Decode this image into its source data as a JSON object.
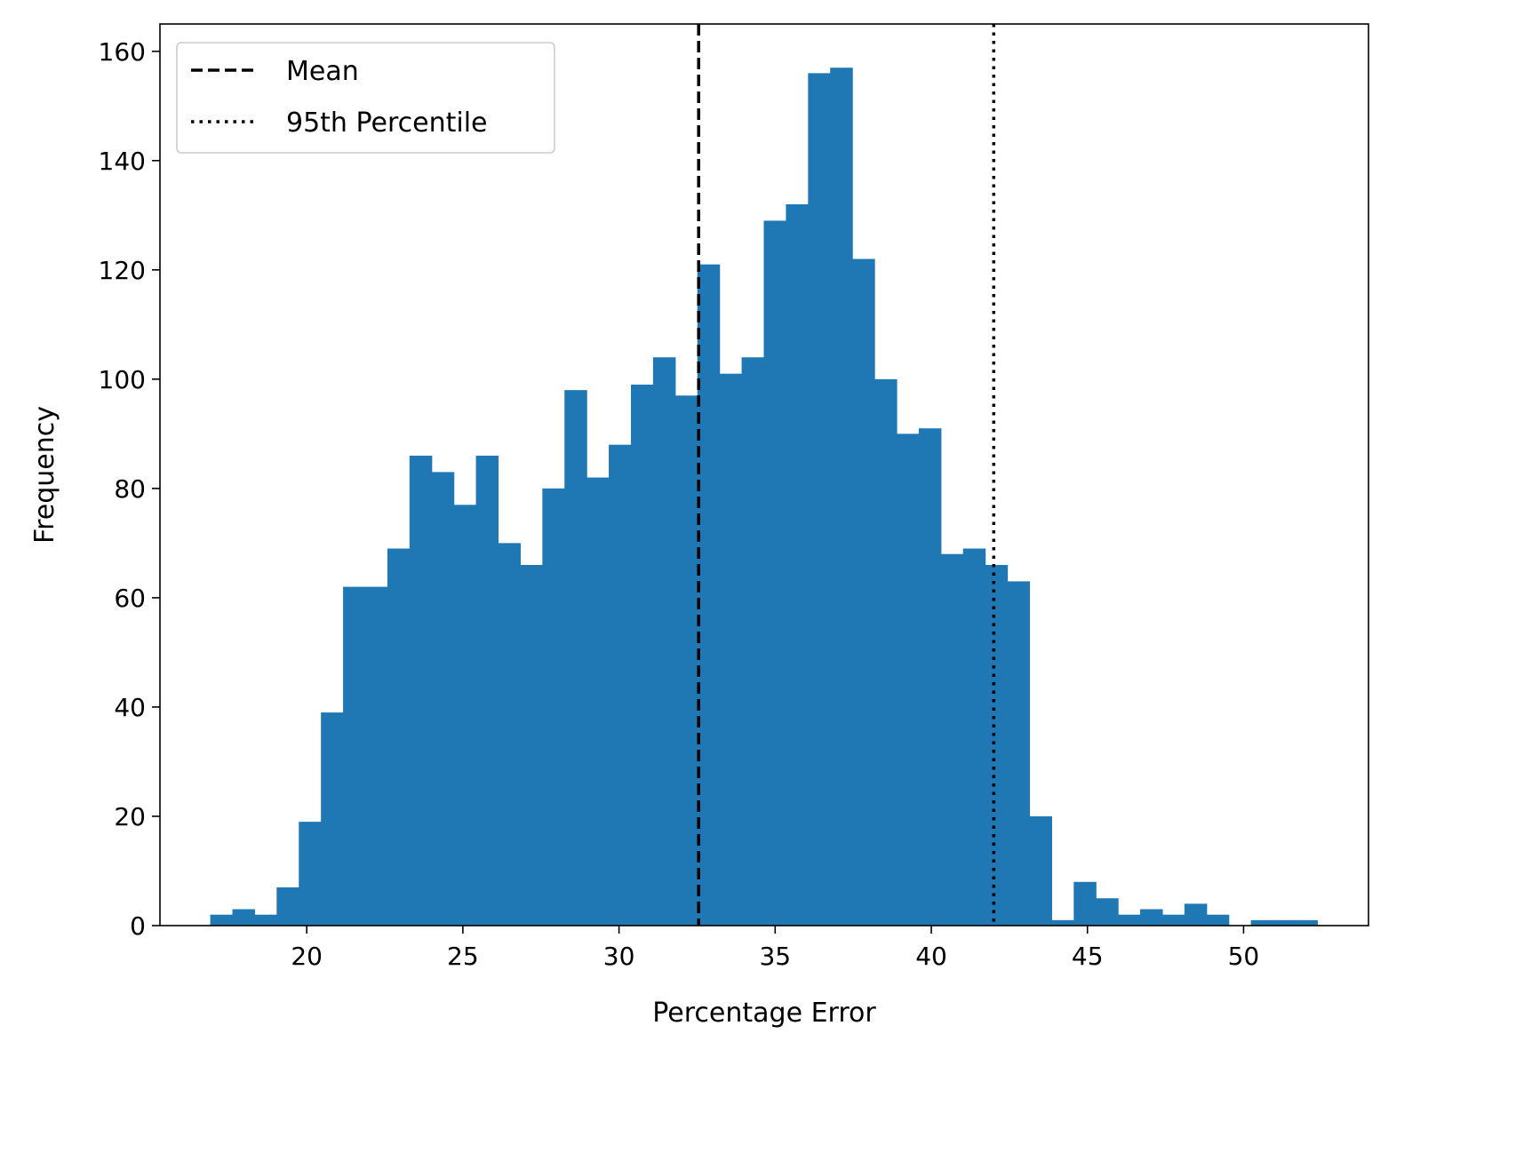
{
  "chart_data": {
    "type": "bar",
    "subtype": "histogram",
    "xlabel": "Percentage Error",
    "ylabel": "Frequency",
    "xlim": [
      15.3,
      54.0
    ],
    "ylim": [
      0,
      165
    ],
    "xticks": [
      20,
      25,
      30,
      35,
      40,
      45,
      50
    ],
    "yticks": [
      0,
      20,
      40,
      60,
      80,
      100,
      120,
      140,
      160
    ],
    "bar_color": "#1f77b4",
    "bin_start": 16.91,
    "bin_width": 0.709,
    "frequencies": [
      2,
      3,
      2,
      7,
      19,
      39,
      62,
      62,
      69,
      86,
      83,
      77,
      86,
      70,
      66,
      80,
      98,
      82,
      88,
      99,
      104,
      97,
      121,
      101,
      104,
      129,
      132,
      156,
      157,
      122,
      100,
      90,
      91,
      68,
      69,
      66,
      63,
      20,
      1,
      8,
      5,
      2,
      3,
      2,
      4,
      2,
      0,
      1,
      1,
      1
    ],
    "reference_lines": [
      {
        "name": "Mean",
        "x": 32.55,
        "style": "dashed",
        "color": "#000000"
      },
      {
        "name": "95th Percentile",
        "x": 42.0,
        "style": "dotted",
        "color": "#000000"
      }
    ],
    "legend": {
      "placement": "top-left",
      "entries": [
        "Mean",
        "95th Percentile"
      ]
    },
    "grid": false
  }
}
